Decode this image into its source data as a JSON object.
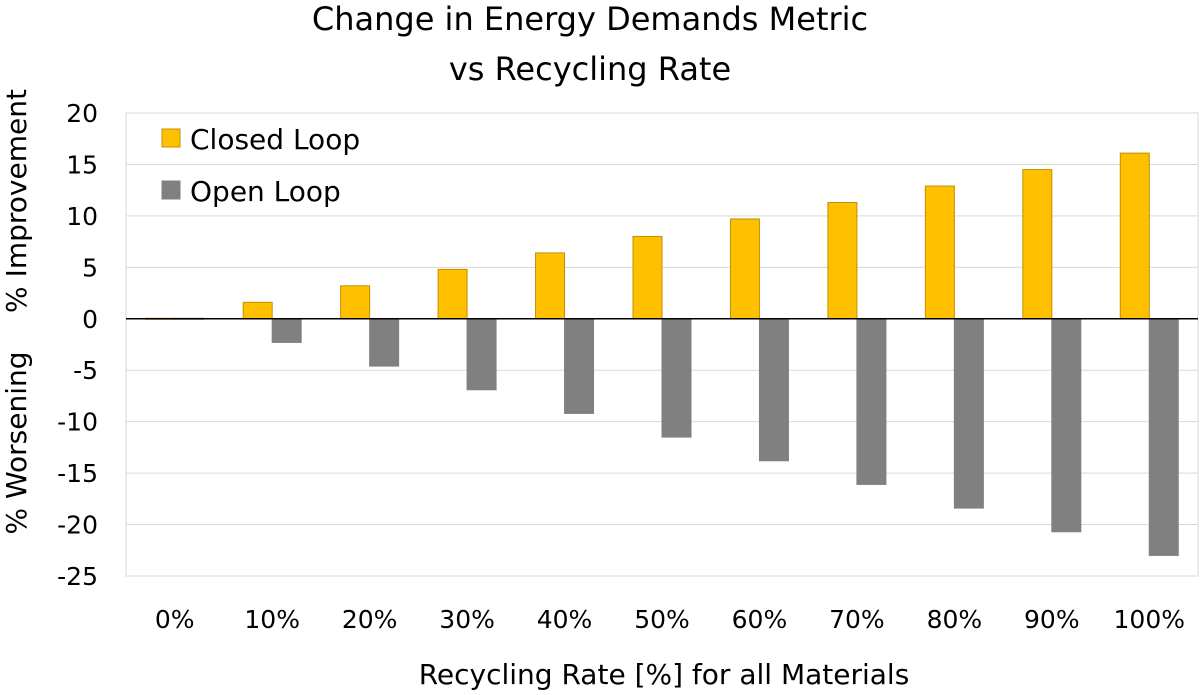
{
  "chart_data": {
    "type": "bar",
    "title_lines": [
      "Change in Energy Demands Metric",
      "vs Recycling Rate"
    ],
    "xlabel": "Recycling Rate [%] for all Materials",
    "ylabel_top": "% Improvement",
    "ylabel_bottom": "% Worsening",
    "categories": [
      "0%",
      "10%",
      "20%",
      "30%",
      "40%",
      "50%",
      "60%",
      "70%",
      "80%",
      "90%",
      "100%"
    ],
    "ylim": [
      -25,
      20
    ],
    "ytick_step": 5,
    "yticks": [
      "20",
      "15",
      "10",
      "5",
      "0",
      "-5",
      "-10",
      "-15",
      "-20",
      "-25"
    ],
    "grid": true,
    "legend_position": "top-left",
    "series": [
      {
        "name": "Closed Loop",
        "color": "#FFC000",
        "edge": "#C09000",
        "values": [
          0,
          1.6,
          3.2,
          4.8,
          6.4,
          8.0,
          9.7,
          11.3,
          12.9,
          14.5,
          16.1
        ]
      },
      {
        "name": "Open Loop",
        "color": "#808080",
        "edge": "#808080",
        "values": [
          0,
          -2.3,
          -4.6,
          -6.9,
          -9.2,
          -11.5,
          -13.8,
          -16.1,
          -18.4,
          -20.7,
          -23.0
        ]
      }
    ]
  }
}
